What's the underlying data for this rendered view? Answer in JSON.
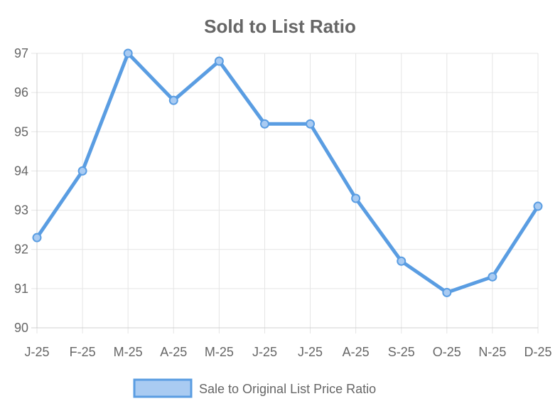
{
  "chart_data": {
    "type": "line",
    "title": "Sold to List Ratio",
    "xlabel": "",
    "ylabel": "",
    "categories": [
      "J-25",
      "F-25",
      "M-25",
      "A-25",
      "M-25",
      "J-25",
      "J-25",
      "A-25",
      "S-25",
      "O-25",
      "N-25",
      "D-25"
    ],
    "series": [
      {
        "name": "Sale to Original List Price Ratio",
        "values": [
          92.3,
          94.0,
          97.0,
          95.8,
          96.8,
          95.2,
          95.2,
          93.3,
          91.7,
          90.9,
          91.3,
          93.1
        ],
        "color": "#5a9de2"
      }
    ],
    "ylim": [
      90,
      97
    ],
    "yticks": [
      90,
      91,
      92,
      93,
      94,
      95,
      96,
      97
    ],
    "grid": true,
    "legend_position": "bottom"
  }
}
